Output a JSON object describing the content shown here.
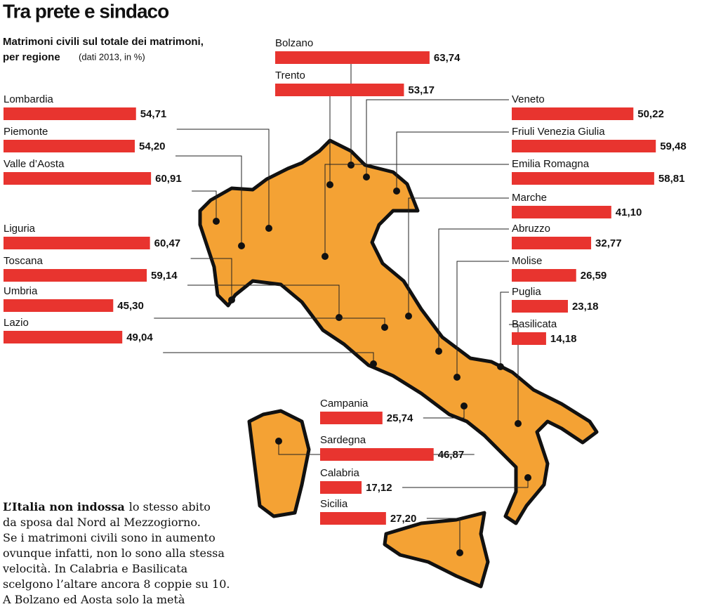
{
  "chart_data": {
    "type": "bar",
    "title": "Tra prete e sindaco",
    "subtitle": [
      "Matrimoni civili sul totale dei matrimoni,",
      "per regione"
    ],
    "note": "(dati 2013, in %)",
    "color": "#e8342f",
    "categories": [
      "Bolzano",
      "Trento",
      "Lombardia",
      "Piemonte",
      "Valle d’Aosta",
      "Liguria",
      "Toscana",
      "Umbria",
      "Lazio",
      "Veneto",
      "Friuli Venezia Giulia",
      "Emilia Romagna",
      "Marche",
      "Abruzzo",
      "Molise",
      "Puglia",
      "Basilicata",
      "Campania",
      "Sardegna",
      "Calabria",
      "Sicilia"
    ],
    "values": [
      63.74,
      53.17,
      54.71,
      54.2,
      60.91,
      60.47,
      59.14,
      45.3,
      49.04,
      50.22,
      59.48,
      58.81,
      41.1,
      32.77,
      26.59,
      23.18,
      14.18,
      25.74,
      46.87,
      17.12,
      27.2
    ],
    "value_labels": [
      "63,74",
      "53,17",
      "54,71",
      "54,20",
      "60,91",
      "60,47",
      "59,14",
      "45,30",
      "49,04",
      "50,22",
      "59,48",
      "58,81",
      "41,10",
      "32,77",
      "26,59",
      "23,18",
      "14,18",
      "25,74",
      "46,87",
      "17,12",
      "27,20"
    ],
    "annotation": {
      "lead": "L’Italia non indossa",
      "lines": [
        "lo stesso abito",
        "da sposa dal Nord al Mezzogiorno.",
        "Se i matrimoni civili sono in aumento",
        "ovunque infatti, non lo sono alla stessa",
        "velocità. In Calabria e Basilicata",
        "scelgono l’altare ancora 8 coppie su 10.",
        "A Bolzano ed Aosta solo la metà"
      ]
    }
  }
}
